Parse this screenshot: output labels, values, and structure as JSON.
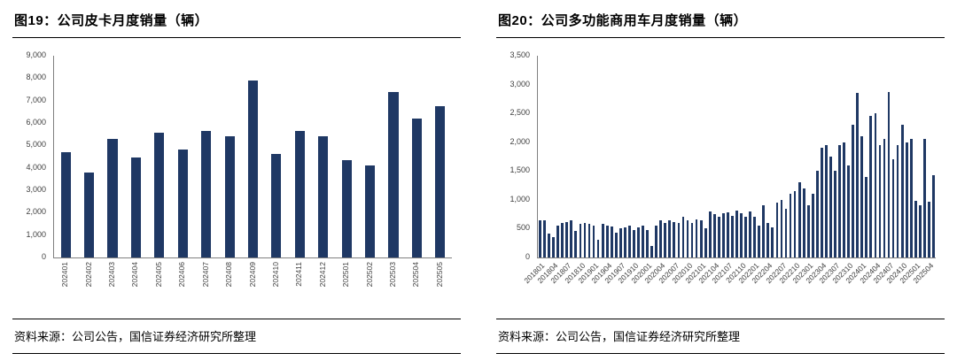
{
  "panels": [
    {
      "title": "图19：公司皮卡月度销量（辆）",
      "source": "资料来源：公司公告，国信证券经济研究所整理"
    },
    {
      "title": "图20：公司多功能商用车月度销量（辆）",
      "source": "资料来源：公司公告，国信证券经济研究所整理"
    }
  ],
  "colors": {
    "bar": "#1f3864",
    "axis": "#808080",
    "tick_text": "#404040"
  },
  "chart_data": [
    {
      "type": "bar",
      "title": "图19：公司皮卡月度销量（辆）",
      "categories": [
        "202401",
        "202402",
        "202403",
        "202404",
        "202405",
        "202406",
        "202407",
        "202408",
        "202409",
        "202410",
        "202411",
        "202412",
        "202501",
        "202502",
        "202503",
        "202504",
        "202505"
      ],
      "values": [
        4700,
        3800,
        5300,
        4450,
        5550,
        4800,
        5650,
        5400,
        7900,
        4600,
        5650,
        5400,
        4350,
        4100,
        7400,
        6200,
        6750
      ],
      "xlabel": "",
      "ylabel": "",
      "ylim": [
        0,
        9000
      ],
      "ytick_interval": 1000,
      "grid": false,
      "legend": "none",
      "bar_color": "#1f3864",
      "bar_width_frac": 0.42,
      "label_every": 1,
      "label_style": "vertical"
    },
    {
      "type": "bar",
      "title": "图20：公司多功能商用车月度销量（辆）",
      "categories": [
        "201801",
        "201802",
        "201803",
        "201804",
        "201805",
        "201806",
        "201807",
        "201808",
        "201809",
        "201810",
        "201811",
        "201812",
        "201901",
        "201902",
        "201903",
        "201904",
        "201905",
        "201906",
        "201907",
        "201908",
        "201909",
        "201910",
        "201911",
        "201912",
        "202001",
        "202002",
        "202003",
        "202004",
        "202005",
        "202006",
        "202007",
        "202008",
        "202009",
        "202010",
        "202011",
        "202012",
        "202101",
        "202102",
        "202103",
        "202104",
        "202105",
        "202106",
        "202107",
        "202108",
        "202109",
        "202110",
        "202111",
        "202112",
        "202201",
        "202202",
        "202203",
        "202204",
        "202205",
        "202206",
        "202207",
        "202208",
        "202209",
        "202210",
        "202211",
        "202212",
        "202301",
        "202302",
        "202303",
        "202304",
        "202305",
        "202306",
        "202307",
        "202308",
        "202309",
        "202310",
        "202311",
        "202312",
        "202401",
        "202402",
        "202403",
        "202404",
        "202405",
        "202406",
        "202407",
        "202408",
        "202409",
        "202410",
        "202411",
        "202412",
        "202501",
        "202502",
        "202503",
        "202504",
        "202505"
      ],
      "values": [
        650,
        640,
        420,
        360,
        560,
        600,
        620,
        650,
        460,
        580,
        600,
        590,
        560,
        300,
        580,
        560,
        540,
        430,
        500,
        520,
        545,
        480,
        520,
        560,
        480,
        200,
        560,
        640,
        600,
        650,
        620,
        600,
        700,
        650,
        600,
        660,
        650,
        500,
        800,
        750,
        700,
        760,
        780,
        720,
        820,
        760,
        700,
        800,
        700,
        550,
        900,
        600,
        520,
        950,
        1000,
        850,
        1100,
        1150,
        1300,
        1200,
        900,
        1100,
        1500,
        1900,
        1950,
        1750,
        1500,
        1950,
        2000,
        1600,
        2300,
        2850,
        2100,
        1400,
        2450,
        2500,
        1950,
        2050,
        2870,
        1700,
        1950,
        2300,
        2000,
        2050,
        980,
        900,
        2050,
        960,
        1420
      ],
      "xlabel": "",
      "ylabel": "",
      "ylim": [
        0,
        3500
      ],
      "ytick_interval": 500,
      "grid": false,
      "legend": "none",
      "bar_color": "#1f3864",
      "bar_width_frac": 0.55,
      "label_every": 3,
      "label_style": "diagonal"
    }
  ]
}
